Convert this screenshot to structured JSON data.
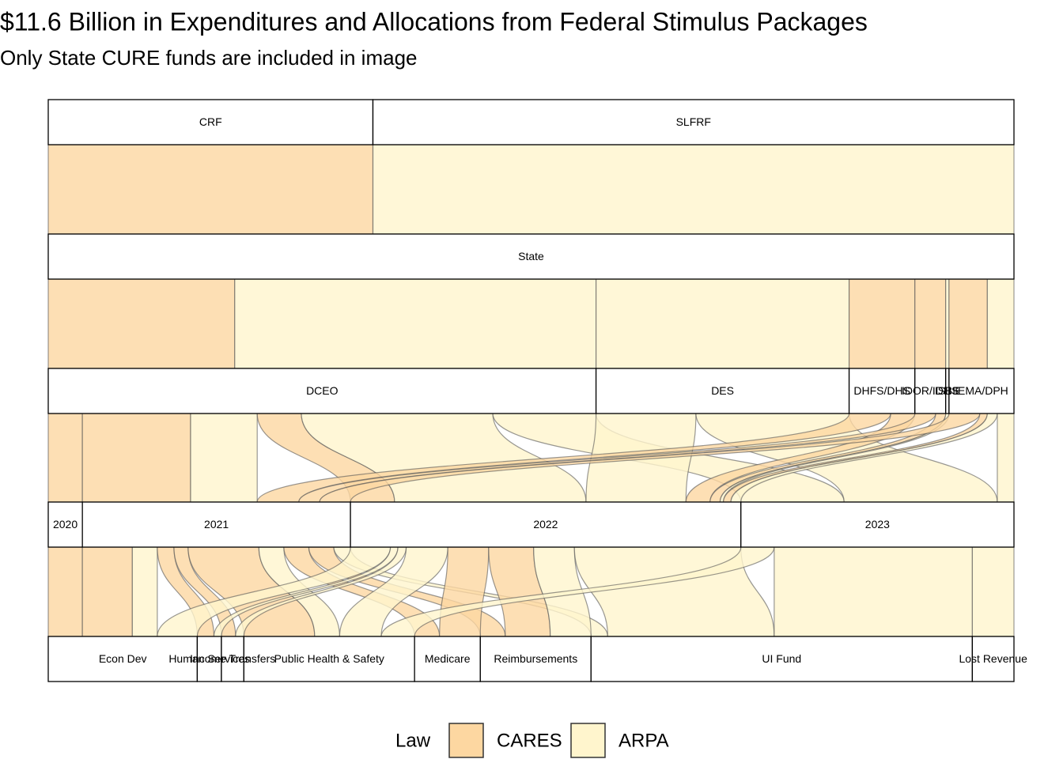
{
  "chart_data": {
    "type": "alluvial",
    "title": "$11.6 Billion in Expenditures and Allocations from Federal Stimulus Packages",
    "subtitle": "Only State CURE funds are included in image",
    "legend_title": "Law",
    "laws": [
      {
        "name": "CARES",
        "color": "#fdd7a1"
      },
      {
        "name": "ARPA",
        "color": "#fff5cd"
      }
    ],
    "axes": [
      {
        "strata": [
          {
            "label": "CRF",
            "value": 3.9
          },
          {
            "label": "SLFRF",
            "value": 7.7
          }
        ]
      },
      {
        "strata": [
          {
            "label": "State",
            "value": 11.6
          }
        ]
      },
      {
        "strata": [
          {
            "label": "DCEO",
            "value": 6.58
          },
          {
            "label": "DES",
            "value": 3.04
          },
          {
            "label": "DHFS/DHS",
            "value": 0.79
          },
          {
            "label": "IDOR/IDHS",
            "value": 0.37
          },
          {
            "label": "ISBE",
            "value": 0.04
          },
          {
            "label": "IEMA/DPH",
            "value": 0.78
          }
        ]
      },
      {
        "strata": [
          {
            "label": "2020",
            "value": 0.41
          },
          {
            "label": "2021",
            "value": 3.22
          },
          {
            "label": "2022",
            "value": 4.69
          },
          {
            "label": "2023",
            "value": 3.28
          }
        ]
      },
      {
        "strata": [
          {
            "label": "Econ Dev",
            "value": 1.79
          },
          {
            "label": "Human Services",
            "value": 0.29
          },
          {
            "label": "Income Transfers",
            "value": 0.27
          },
          {
            "label": "Public Health & Safety",
            "value": 2.05
          },
          {
            "label": "Medicare",
            "value": 0.79
          },
          {
            "label": "Reimbursements",
            "value": 1.33
          },
          {
            "label": "UI Fund",
            "value": 4.58
          },
          {
            "label": "Lost Revenue",
            "value": 0.5
          }
        ]
      }
    ],
    "flows": [
      [
        {
          "from": "CRF",
          "to": "State",
          "law": "CARES",
          "value": 3.9
        },
        {
          "from": "SLFRF",
          "to": "State",
          "law": "ARPA",
          "value": 7.7
        }
      ],
      [
        {
          "from": "State",
          "to": "DCEO",
          "law": "CARES",
          "value": 2.24
        },
        {
          "from": "State",
          "to": "DCEO",
          "law": "ARPA",
          "value": 4.34
        },
        {
          "from": "State",
          "to": "DES",
          "law": "ARPA",
          "value": 3.04
        },
        {
          "from": "State",
          "to": "DHFS/DHS",
          "law": "CARES",
          "value": 0.79
        },
        {
          "from": "State",
          "to": "IDOR/IDHS",
          "law": "CARES",
          "value": 0.37
        },
        {
          "from": "State",
          "to": "ISBE",
          "law": "ARPA",
          "value": 0.04
        },
        {
          "from": "State",
          "to": "IEMA/DPH",
          "law": "CARES",
          "value": 0.46
        },
        {
          "from": "State",
          "to": "IEMA/DPH",
          "law": "ARPA",
          "value": 0.32
        }
      ],
      [
        {
          "from": "DCEO",
          "to": "2020",
          "law": "CARES",
          "value": 0.41
        },
        {
          "from": "DCEO",
          "to": "2021",
          "law": "CARES",
          "value": 1.3
        },
        {
          "from": "DCEO",
          "to": "2021",
          "law": "ARPA",
          "value": 0.8
        },
        {
          "from": "DCEO",
          "to": "2022",
          "law": "CARES",
          "value": 0.53
        },
        {
          "from": "DCEO",
          "to": "2022",
          "law": "ARPA",
          "value": 2.3
        },
        {
          "from": "DCEO",
          "to": "2023",
          "law": "ARPA",
          "value": 1.24
        },
        {
          "from": "DES",
          "to": "2022",
          "law": "ARPA",
          "value": 1.2
        },
        {
          "from": "DES",
          "to": "2023",
          "law": "ARPA",
          "value": 1.84
        },
        {
          "from": "DHFS/DHS",
          "to": "2021",
          "law": "CARES",
          "value": 0.5
        },
        {
          "from": "DHFS/DHS",
          "to": "2022",
          "law": "CARES",
          "value": 0.29
        },
        {
          "from": "IDOR/IDHS",
          "to": "2021",
          "law": "CARES",
          "value": 0.25
        },
        {
          "from": "IDOR/IDHS",
          "to": "2022",
          "law": "CARES",
          "value": 0.12
        },
        {
          "from": "ISBE",
          "to": "2022",
          "law": "ARPA",
          "value": 0.04
        },
        {
          "from": "IEMA/DPH",
          "to": "2021",
          "law": "CARES",
          "value": 0.37
        },
        {
          "from": "IEMA/DPH",
          "to": "2022",
          "law": "CARES",
          "value": 0.09
        },
        {
          "from": "IEMA/DPH",
          "to": "2022",
          "law": "ARPA",
          "value": 0.12
        },
        {
          "from": "IEMA/DPH",
          "to": "2023",
          "law": "ARPA",
          "value": 0.2
        }
      ],
      [
        {
          "from": "2020",
          "to": "Econ Dev",
          "law": "CARES",
          "value": 0.41
        },
        {
          "from": "2021",
          "to": "Econ Dev",
          "law": "CARES",
          "value": 0.6
        },
        {
          "from": "2021",
          "to": "Econ Dev",
          "law": "ARPA",
          "value": 0.3
        },
        {
          "from": "2021",
          "to": "Human Services",
          "law": "CARES",
          "value": 0.2
        },
        {
          "from": "2021",
          "to": "Income Transfers",
          "law": "CARES",
          "value": 0.17
        },
        {
          "from": "2021",
          "to": "Public Health & Safety",
          "law": "CARES",
          "value": 0.85
        },
        {
          "from": "2021",
          "to": "Public Health & Safety",
          "law": "ARPA",
          "value": 0.3
        },
        {
          "from": "2021",
          "to": "Medicare",
          "law": "CARES",
          "value": 0.3
        },
        {
          "from": "2021",
          "to": "Reimbursements",
          "law": "CARES",
          "value": 0.3
        },
        {
          "from": "2021",
          "to": "UI Fund",
          "law": "ARPA",
          "value": 0.2
        },
        {
          "from": "2022",
          "to": "Econ Dev",
          "law": "ARPA",
          "value": 0.48
        },
        {
          "from": "2022",
          "to": "Human Services",
          "law": "ARPA",
          "value": 0.09
        },
        {
          "from": "2022",
          "to": "Income Transfers",
          "law": "ARPA",
          "value": 0.1
        },
        {
          "from": "2022",
          "to": "Public Health & Safety",
          "law": "ARPA",
          "value": 0.5
        },
        {
          "from": "2022",
          "to": "Medicare",
          "law": "CARES",
          "value": 0.49
        },
        {
          "from": "2022",
          "to": "Reimbursements",
          "law": "CARES",
          "value": 0.54
        },
        {
          "from": "2022",
          "to": "Reimbursements",
          "law": "ARPA",
          "value": 0.49
        },
        {
          "from": "2022",
          "to": "UI Fund",
          "law": "ARPA",
          "value": 2.0
        },
        {
          "from": "2023",
          "to": "Public Health & Safety",
          "law": "ARPA",
          "value": 0.4
        },
        {
          "from": "2023",
          "to": "UI Fund",
          "law": "ARPA",
          "value": 2.38
        },
        {
          "from": "2023",
          "to": "Lost Revenue",
          "law": "ARPA",
          "value": 0.5
        }
      ]
    ]
  }
}
